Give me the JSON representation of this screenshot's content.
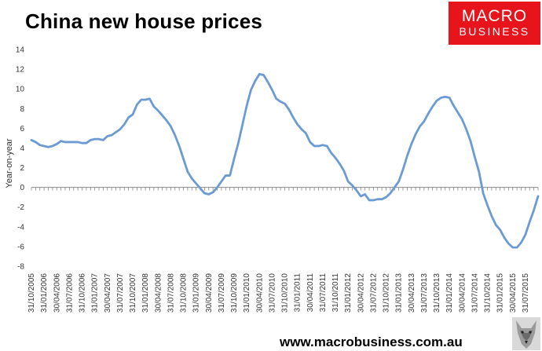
{
  "header": {
    "title": "China new house prices"
  },
  "logo": {
    "line1": "MACRO",
    "line2": "BUSINESS"
  },
  "footer": {
    "url": "www.macrobusiness.com.au"
  },
  "colors": {
    "line": "#6b9bd2",
    "axis": "#888888",
    "logo": "#e8141b"
  },
  "chart_data": {
    "type": "line",
    "title": "China new house prices",
    "xlabel": "",
    "ylabel": "Year-on-year",
    "ylim": [
      -8,
      14
    ],
    "y_ticks": [
      -8,
      -6,
      -4,
      -2,
      0,
      2,
      4,
      6,
      8,
      10,
      12,
      14
    ],
    "grid": false,
    "x_tick_labels": [
      "31/10/2005",
      "31/01/2006",
      "30/04/2006",
      "31/07/2006",
      "31/10/2006",
      "31/01/2007",
      "30/04/2007",
      "31/07/2007",
      "31/10/2007",
      "31/01/2008",
      "30/04/2008",
      "31/07/2008",
      "31/10/2008",
      "31/01/2009",
      "30/04/2009",
      "31/07/2009",
      "31/10/2009",
      "31/01/2010",
      "30/04/2010",
      "31/07/2010",
      "31/10/2010",
      "31/01/2011",
      "30/04/2011",
      "31/07/2011",
      "31/10/2011",
      "31/01/2012",
      "30/04/2012",
      "31/07/2012",
      "31/10/2012",
      "31/01/2013",
      "30/04/2013",
      "31/07/2013",
      "31/10/2013",
      "31/01/2014",
      "30/04/2014",
      "31/07/2014",
      "31/10/2014",
      "31/01/2015",
      "30/04/2015",
      "31/07/2015"
    ],
    "series": [
      {
        "x": [
          "2005-10",
          "2005-11",
          "2005-12",
          "2006-01",
          "2006-02",
          "2006-03",
          "2006-04",
          "2006-05",
          "2006-06",
          "2006-07",
          "2006-08",
          "2006-09",
          "2006-10",
          "2006-11",
          "2006-12",
          "2007-01",
          "2007-02",
          "2007-03",
          "2007-04",
          "2007-05",
          "2007-06",
          "2007-07",
          "2007-08",
          "2007-09",
          "2007-10",
          "2007-11",
          "2007-12",
          "2008-01",
          "2008-02",
          "2008-03",
          "2008-04",
          "2008-05",
          "2008-06",
          "2008-07",
          "2008-08",
          "2008-09",
          "2008-10",
          "2008-11",
          "2008-12",
          "2009-01",
          "2009-02",
          "2009-03",
          "2009-04",
          "2009-05",
          "2009-06",
          "2009-07",
          "2009-08",
          "2009-09",
          "2009-10",
          "2009-11",
          "2009-12",
          "2010-01",
          "2010-02",
          "2010-03",
          "2010-04",
          "2010-05",
          "2010-06",
          "2010-07",
          "2010-08",
          "2010-09",
          "2010-10",
          "2010-11",
          "2010-12",
          "2011-01",
          "2011-02",
          "2011-03",
          "2011-04",
          "2011-05",
          "2011-06",
          "2011-07",
          "2011-08",
          "2011-09",
          "2011-10",
          "2011-11",
          "2011-12",
          "2012-01",
          "2012-02",
          "2012-03",
          "2012-04",
          "2012-05",
          "2012-06",
          "2012-07",
          "2012-08",
          "2012-09",
          "2012-10",
          "2012-11",
          "2012-12",
          "2013-01",
          "2013-02",
          "2013-03",
          "2013-04",
          "2013-05",
          "2013-06",
          "2013-07",
          "2013-08",
          "2013-09",
          "2013-10",
          "2013-11",
          "2013-12",
          "2014-01",
          "2014-02",
          "2014-03",
          "2014-04",
          "2014-05",
          "2014-06",
          "2014-07",
          "2014-08",
          "2014-09",
          "2014-10",
          "2014-11",
          "2014-12",
          "2015-01",
          "2015-02",
          "2015-03",
          "2015-04",
          "2015-05",
          "2015-06",
          "2015-07",
          "2015-08",
          "2015-09",
          "2015-10"
        ],
        "values": [
          4.8,
          4.6,
          4.3,
          4.2,
          4.1,
          4.2,
          4.4,
          4.7,
          4.6,
          4.6,
          4.6,
          4.6,
          4.5,
          4.5,
          4.8,
          4.9,
          4.9,
          4.8,
          5.2,
          5.3,
          5.6,
          5.9,
          6.4,
          7.1,
          7.4,
          8.4,
          8.9,
          8.9,
          9.0,
          8.2,
          7.8,
          7.3,
          6.8,
          6.2,
          5.3,
          4.2,
          2.9,
          1.6,
          0.9,
          0.4,
          -0.1,
          -0.6,
          -0.7,
          -0.5,
          0.0,
          0.6,
          1.2,
          1.2,
          2.9,
          4.5,
          6.4,
          8.3,
          9.9,
          10.8,
          11.5,
          11.4,
          10.7,
          9.9,
          9.0,
          8.7,
          8.5,
          7.9,
          7.1,
          6.4,
          5.9,
          5.5,
          4.6,
          4.2,
          4.2,
          4.3,
          4.2,
          3.5,
          3.0,
          2.4,
          1.7,
          0.6,
          0.2,
          -0.3,
          -0.9,
          -0.7,
          -1.3,
          -1.3,
          -1.2,
          -1.2,
          -1.0,
          -0.6,
          0.0,
          0.6,
          1.8,
          3.2,
          4.4,
          5.4,
          6.2,
          6.7,
          7.5,
          8.2,
          8.8,
          9.1,
          9.2,
          9.1,
          8.3,
          7.6,
          6.9,
          5.9,
          4.7,
          3.1,
          1.6,
          -0.6,
          -1.8,
          -2.9,
          -3.8,
          -4.3,
          -5.1,
          -5.7,
          -6.1,
          -6.1,
          -5.6,
          -4.8,
          -3.5,
          -2.3,
          -0.9
        ]
      }
    ]
  }
}
